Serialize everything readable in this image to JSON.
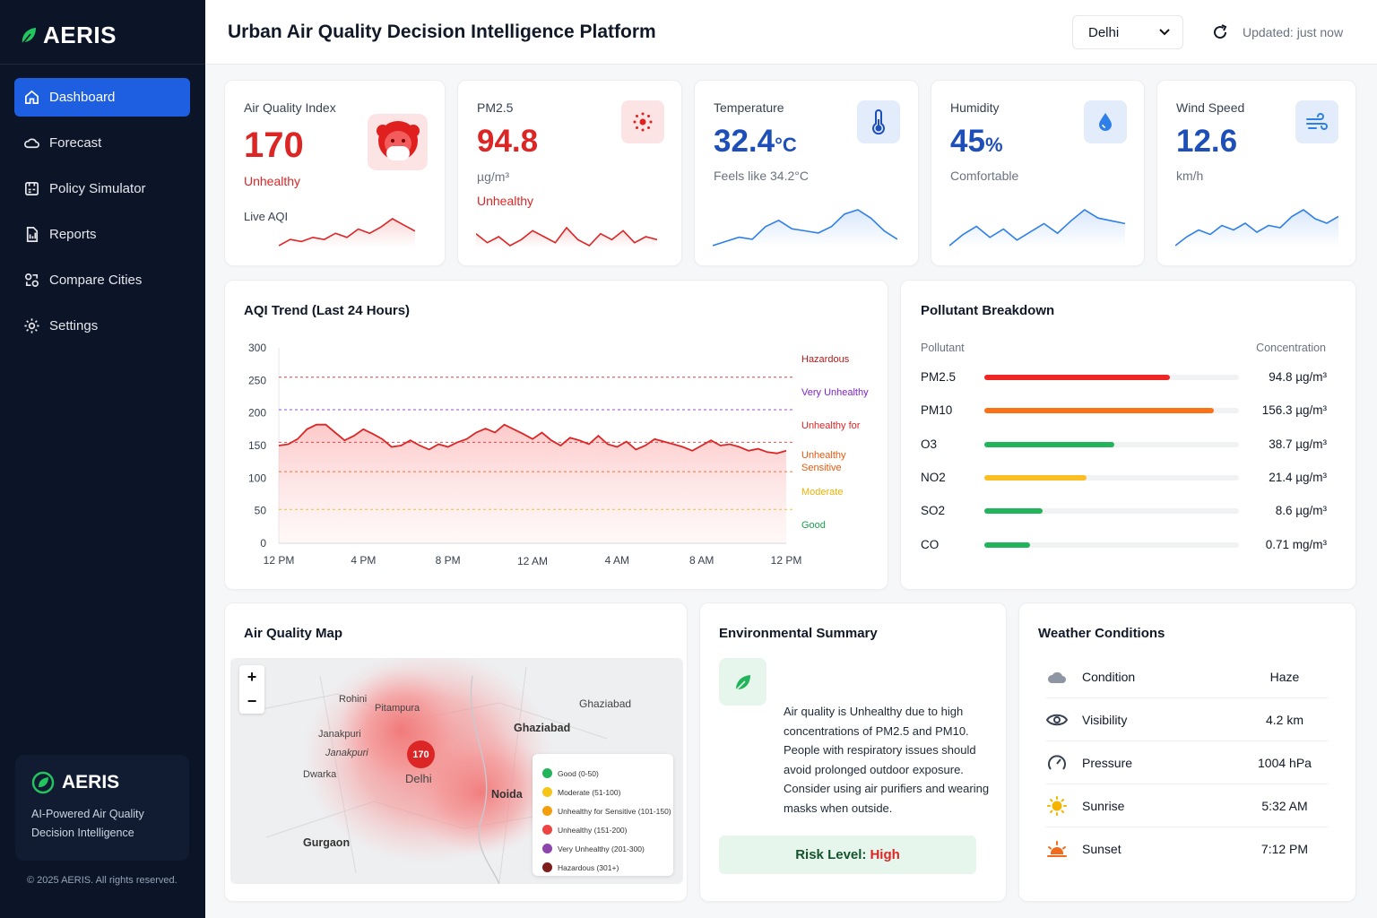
{
  "app": {
    "brand": "AERIS",
    "title": "Urban Air Quality Decision Intelligence Platform"
  },
  "sidebar": {
    "items": [
      {
        "label": "Dashboard",
        "icon": "home-icon",
        "active": true
      },
      {
        "label": "Forecast",
        "icon": "cloud-icon",
        "active": false
      },
      {
        "label": "Policy Simulator",
        "icon": "policy-icon",
        "active": false
      },
      {
        "label": "Reports",
        "icon": "report-icon",
        "active": false
      },
      {
        "label": "Compare Cities",
        "icon": "compare-icon",
        "active": false
      },
      {
        "label": "Settings",
        "icon": "gear-icon",
        "active": false
      }
    ],
    "promo": {
      "brand": "AERIS",
      "tagline_line1": "AI-Powered Air Quality",
      "tagline_line2": "Decision Intelligence"
    },
    "copyright": "© 2025 AERIS. All rights reserved."
  },
  "header": {
    "city": "Delhi",
    "updated": "Updated: just now"
  },
  "kpis": {
    "aqi": {
      "label": "Air Quality Index",
      "value": "170",
      "status": "Unhealthy",
      "sub": "Live AQI",
      "spark": [
        6,
        9,
        8,
        10,
        9,
        12,
        10,
        14,
        12,
        15,
        19,
        16,
        13
      ]
    },
    "pm25": {
      "label": "PM2.5",
      "value": "94.8",
      "unit": "µg/m³",
      "status": "Unhealthy",
      "spark": [
        12,
        9,
        11,
        8,
        10,
        13,
        11,
        9,
        14,
        10,
        8,
        12,
        10,
        13,
        9,
        11,
        10
      ]
    },
    "temperature": {
      "label": "Temperature",
      "value": "32.4",
      "unit": "°C",
      "sub": "Feels like 34.2°C",
      "spark": [
        4,
        8,
        12,
        10,
        22,
        28,
        20,
        18,
        16,
        22,
        34,
        38,
        30,
        18,
        10
      ]
    },
    "humidity": {
      "label": "Humidity",
      "value": "45",
      "unit": "%",
      "sub": "Comfortable",
      "spark": [
        6,
        14,
        20,
        12,
        18,
        10,
        16,
        22,
        15,
        24,
        32,
        26,
        24,
        22
      ]
    },
    "wind": {
      "label": "Wind Speed",
      "value": "12.6",
      "unit": "km/h",
      "spark": [
        4,
        12,
        18,
        14,
        22,
        18,
        24,
        16,
        22,
        20,
        30,
        36,
        28,
        24,
        30
      ]
    }
  },
  "trend": {
    "title": "AQI Trend (Last 24 Hours)",
    "chart_data": {
      "type": "line",
      "ylim": [
        0,
        300
      ],
      "yticks": [
        "0",
        "50",
        "100",
        "150",
        "200",
        "250",
        "300"
      ],
      "xticks": [
        "12 PM",
        "4 PM",
        "8 PM",
        "12 AM",
        "4 AM",
        "8 AM",
        "12 PM"
      ],
      "values": [
        150,
        152,
        160,
        175,
        182,
        182,
        170,
        158,
        165,
        175,
        168,
        160,
        148,
        150,
        158,
        150,
        144,
        152,
        148,
        155,
        160,
        170,
        176,
        170,
        182,
        175,
        168,
        160,
        170,
        158,
        150,
        162,
        158,
        152,
        165,
        152,
        148,
        156,
        144,
        150,
        160,
        156,
        152,
        148,
        142,
        150,
        158,
        150,
        152,
        148,
        142,
        145,
        140,
        138,
        142
      ],
      "thresholds": [
        {
          "label": "Hazardous",
          "value": 255,
          "color": "#b91c1c"
        },
        {
          "label": "Very Unhealthy",
          "value": 205,
          "color": "#7e22ce"
        },
        {
          "label": "Unhealthy for",
          "value": 155,
          "color": "#dc2626"
        },
        {
          "label": "Unhealthy",
          "value": 110,
          "color": "#ea580c",
          "line2": "Sensitive"
        },
        {
          "label": "Moderate",
          "value": 52,
          "color": "#eab308"
        },
        {
          "label": "Good",
          "value": 0,
          "color": "#16a34a"
        }
      ],
      "line_color": "#dc2626"
    }
  },
  "pollutants": {
    "title": "Pollutant Breakdown",
    "col_pollutant": "Pollutant",
    "col_concentration": "Concentration",
    "rows": [
      {
        "name": "PM2.5",
        "value": "94.8 µg/m³",
        "level": 0.73,
        "color": "#ef2626"
      },
      {
        "name": "PM10",
        "value": "156.3 µg/m³",
        "level": 0.9,
        "color": "#f97316"
      },
      {
        "name": "O3",
        "value": "38.7 µg/m³",
        "level": 0.51,
        "color": "#22b45a"
      },
      {
        "name": "NO2",
        "value": "21.4 µg/m³",
        "level": 0.4,
        "color": "#fbbf24"
      },
      {
        "name": "SO2",
        "value": "8.6 µg/m³",
        "level": 0.23,
        "color": "#22b45a"
      },
      {
        "name": "CO",
        "value": "0.71 mg/m³",
        "level": 0.18,
        "color": "#22b45a"
      }
    ]
  },
  "map": {
    "title": "Air Quality Map",
    "zoom_in": "+",
    "zoom_out": "−",
    "marker": "170",
    "places": {
      "rohini": "Rohini",
      "pitampura": "Pitampura",
      "janakpuri": "Janakpuri",
      "janakpuri2": "Janakpuri",
      "dwarka": "Dwarka",
      "delhi": "Delhi",
      "ghaziabad": "Ghaziabad",
      "noida": "Noida",
      "gurgaon": "Gurgaon",
      "top_right": "Ghaziabad"
    },
    "legend": [
      {
        "label": "Good (0-50)",
        "color": "#22b45a"
      },
      {
        "label": "Moderate (51-100)",
        "color": "#f5c518"
      },
      {
        "label": "Unhealthy for Sensitive (101-150)",
        "color": "#f59e0b"
      },
      {
        "label": "Unhealthy (151-200)",
        "color": "#ef4444"
      },
      {
        "label": "Very Unhealthy (201-300)",
        "color": "#8e44ad"
      },
      {
        "label": "Hazardous (301+)",
        "color": "#7f1d1d"
      }
    ]
  },
  "summary": {
    "title": "Environmental Summary",
    "text": "Air quality is Unhealthy due to high concentrations of PM2.5 and PM10. People with respiratory issues should avoid prolonged outdoor exposure. Consider using air purifiers and wearing masks when outside.",
    "risk_label": "Risk Level:",
    "risk_value": "High"
  },
  "weather": {
    "title": "Weather Conditions",
    "rows": [
      {
        "label": "Condition",
        "value": "Haze",
        "icon": "cloud-icon"
      },
      {
        "label": "Visibility",
        "value": "4.2 km",
        "icon": "eye-icon"
      },
      {
        "label": "Pressure",
        "value": "1004 hPa",
        "icon": "gauge-icon"
      },
      {
        "label": "Sunrise",
        "value": "5:32 AM",
        "icon": "sunrise-icon"
      },
      {
        "label": "Sunset",
        "value": "7:12 PM",
        "icon": "sunset-icon"
      }
    ]
  }
}
